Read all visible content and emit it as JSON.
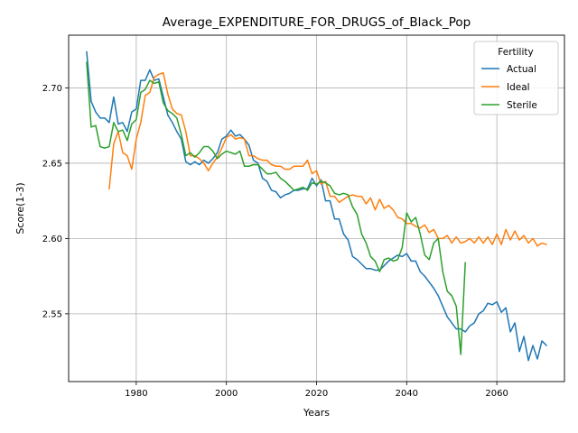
{
  "chart_data": {
    "type": "line",
    "title": "Average_EXPENDITURE_FOR_DRUGS_of_Black_Pop",
    "xlabel": "Years",
    "ylabel": "Score(1-3)",
    "xlim": [
      1965,
      2075
    ],
    "ylim": [
      2.505,
      2.735
    ],
    "xticks": [
      1980,
      2000,
      2020,
      2040,
      2060
    ],
    "yticks": [
      2.55,
      2.6,
      2.65,
      2.7
    ],
    "xtick_labels": [
      "1980",
      "2000",
      "2020",
      "2040",
      "2060"
    ],
    "ytick_labels": [
      "2.55",
      "2.60",
      "2.65",
      "2.70"
    ],
    "grid": true,
    "legend": {
      "title": "Fertility",
      "placement": "top-right"
    },
    "series": [
      {
        "name": "Actual",
        "color": "#1f77b4",
        "points": [
          [
            1969,
            2.724
          ],
          [
            1970,
            2.691
          ],
          [
            1971,
            2.684
          ],
          [
            1972,
            2.68
          ],
          [
            1973,
            2.68
          ],
          [
            1974,
            2.677
          ],
          [
            1975,
            2.694
          ],
          [
            1976,
            2.676
          ],
          [
            1977,
            2.677
          ],
          [
            1978,
            2.671
          ],
          [
            1979,
            2.684
          ],
          [
            1980,
            2.686
          ],
          [
            1981,
            2.705
          ],
          [
            1982,
            2.705
          ],
          [
            1983,
            2.712
          ],
          [
            1984,
            2.705
          ],
          [
            1985,
            2.706
          ],
          [
            1986,
            2.694
          ],
          [
            1987,
            2.682
          ],
          [
            1988,
            2.677
          ],
          [
            1989,
            2.671
          ],
          [
            1990,
            2.666
          ],
          [
            1991,
            2.651
          ],
          [
            1992,
            2.649
          ],
          [
            1993,
            2.651
          ],
          [
            1994,
            2.649
          ],
          [
            1995,
            2.652
          ],
          [
            1996,
            2.65
          ],
          [
            1997,
            2.653
          ],
          [
            1998,
            2.657
          ],
          [
            1999,
            2.666
          ],
          [
            2000,
            2.668
          ],
          [
            2001,
            2.672
          ],
          [
            2002,
            2.668
          ],
          [
            2003,
            2.669
          ],
          [
            2004,
            2.666
          ],
          [
            2005,
            2.662
          ],
          [
            2006,
            2.652
          ],
          [
            2007,
            2.65
          ],
          [
            2008,
            2.64
          ],
          [
            2009,
            2.638
          ],
          [
            2010,
            2.632
          ],
          [
            2011,
            2.631
          ],
          [
            2012,
            2.627
          ],
          [
            2013,
            2.629
          ],
          [
            2014,
            2.63
          ],
          [
            2015,
            2.632
          ],
          [
            2016,
            2.632
          ],
          [
            2017,
            2.633
          ],
          [
            2018,
            2.633
          ],
          [
            2019,
            2.64
          ],
          [
            2020,
            2.635
          ],
          [
            2021,
            2.639
          ],
          [
            2022,
            2.625
          ],
          [
            2023,
            2.625
          ],
          [
            2024,
            2.613
          ],
          [
            2025,
            2.613
          ],
          [
            2026,
            2.603
          ],
          [
            2027,
            2.599
          ],
          [
            2028,
            2.588
          ],
          [
            2029,
            2.586
          ],
          [
            2030,
            2.583
          ],
          [
            2031,
            2.58
          ],
          [
            2032,
            2.58
          ],
          [
            2033,
            2.579
          ],
          [
            2034,
            2.579
          ],
          [
            2035,
            2.582
          ],
          [
            2036,
            2.585
          ],
          [
            2037,
            2.587
          ],
          [
            2038,
            2.589
          ],
          [
            2039,
            2.588
          ],
          [
            2040,
            2.59
          ],
          [
            2041,
            2.585
          ],
          [
            2042,
            2.585
          ],
          [
            2043,
            2.578
          ],
          [
            2044,
            2.575
          ],
          [
            2045,
            2.571
          ],
          [
            2046,
            2.567
          ],
          [
            2047,
            2.562
          ],
          [
            2048,
            2.555
          ],
          [
            2049,
            2.548
          ],
          [
            2050,
            2.544
          ],
          [
            2051,
            2.54
          ],
          [
            2052,
            2.54
          ],
          [
            2053,
            2.538
          ],
          [
            2054,
            2.542
          ],
          [
            2055,
            2.544
          ],
          [
            2056,
            2.55
          ],
          [
            2057,
            2.552
          ],
          [
            2058,
            2.557
          ],
          [
            2059,
            2.556
          ],
          [
            2060,
            2.558
          ],
          [
            2061,
            2.551
          ],
          [
            2062,
            2.554
          ],
          [
            2063,
            2.538
          ],
          [
            2064,
            2.544
          ],
          [
            2065,
            2.525
          ],
          [
            2066,
            2.535
          ],
          [
            2067,
            2.519
          ],
          [
            2068,
            2.529
          ],
          [
            2069,
            2.52
          ],
          [
            2070,
            2.532
          ],
          [
            2071,
            2.529
          ]
        ]
      },
      {
        "name": "Ideal",
        "color": "#ff7f0e",
        "points": [
          [
            1974,
            2.633
          ],
          [
            1975,
            2.663
          ],
          [
            1976,
            2.671
          ],
          [
            1977,
            2.657
          ],
          [
            1978,
            2.655
          ],
          [
            1979,
            2.646
          ],
          [
            1980,
            2.666
          ],
          [
            1981,
            2.677
          ],
          [
            1982,
            2.695
          ],
          [
            1983,
            2.697
          ],
          [
            1984,
            2.707
          ],
          [
            1985,
            2.709
          ],
          [
            1986,
            2.71
          ],
          [
            1987,
            2.696
          ],
          [
            1988,
            2.686
          ],
          [
            1989,
            2.683
          ],
          [
            1990,
            2.682
          ],
          [
            1991,
            2.671
          ],
          [
            1992,
            2.655
          ],
          [
            1993,
            2.655
          ],
          [
            1994,
            2.653
          ],
          [
            1995,
            2.65
          ],
          [
            1996,
            2.645
          ],
          [
            1997,
            2.65
          ],
          [
            1998,
            2.654
          ],
          [
            1999,
            2.66
          ],
          [
            2000,
            2.667
          ],
          [
            2001,
            2.669
          ],
          [
            2002,
            2.666
          ],
          [
            2003,
            2.667
          ],
          [
            2004,
            2.666
          ],
          [
            2005,
            2.655
          ],
          [
            2006,
            2.655
          ],
          [
            2007,
            2.653
          ],
          [
            2008,
            2.652
          ],
          [
            2009,
            2.652
          ],
          [
            2010,
            2.649
          ],
          [
            2011,
            2.648
          ],
          [
            2012,
            2.648
          ],
          [
            2013,
            2.646
          ],
          [
            2014,
            2.646
          ],
          [
            2015,
            2.648
          ],
          [
            2016,
            2.648
          ],
          [
            2017,
            2.648
          ],
          [
            2018,
            2.652
          ],
          [
            2019,
            2.643
          ],
          [
            2020,
            2.645
          ],
          [
            2021,
            2.636
          ],
          [
            2022,
            2.638
          ],
          [
            2023,
            2.628
          ],
          [
            2024,
            2.628
          ],
          [
            2025,
            2.624
          ],
          [
            2026,
            2.626
          ],
          [
            2027,
            2.628
          ],
          [
            2028,
            2.629
          ],
          [
            2029,
            2.628
          ],
          [
            2030,
            2.628
          ],
          [
            2031,
            2.623
          ],
          [
            2032,
            2.627
          ],
          [
            2033,
            2.619
          ],
          [
            2034,
            2.626
          ],
          [
            2035,
            2.62
          ],
          [
            2036,
            2.622
          ],
          [
            2037,
            2.619
          ],
          [
            2038,
            2.614
          ],
          [
            2039,
            2.613
          ],
          [
            2040,
            2.61
          ],
          [
            2041,
            2.61
          ],
          [
            2042,
            2.608
          ],
          [
            2043,
            2.607
          ],
          [
            2044,
            2.609
          ],
          [
            2045,
            2.604
          ],
          [
            2046,
            2.606
          ],
          [
            2047,
            2.6
          ],
          [
            2048,
            2.6
          ],
          [
            2049,
            2.602
          ],
          [
            2050,
            2.597
          ],
          [
            2051,
            2.601
          ],
          [
            2052,
            2.597
          ],
          [
            2053,
            2.598
          ],
          [
            2054,
            2.6
          ],
          [
            2055,
            2.597
          ],
          [
            2056,
            2.601
          ],
          [
            2057,
            2.597
          ],
          [
            2058,
            2.601
          ],
          [
            2059,
            2.596
          ],
          [
            2060,
            2.603
          ],
          [
            2061,
            2.596
          ],
          [
            2062,
            2.606
          ],
          [
            2063,
            2.599
          ],
          [
            2064,
            2.605
          ],
          [
            2065,
            2.599
          ],
          [
            2066,
            2.602
          ],
          [
            2067,
            2.597
          ],
          [
            2068,
            2.6
          ],
          [
            2069,
            2.595
          ],
          [
            2070,
            2.597
          ],
          [
            2071,
            2.596
          ]
        ]
      },
      {
        "name": "Sterile",
        "color": "#2ca02c",
        "points": [
          [
            1969,
            2.717
          ],
          [
            1970,
            2.674
          ],
          [
            1971,
            2.675
          ],
          [
            1972,
            2.661
          ],
          [
            1973,
            2.66
          ],
          [
            1974,
            2.661
          ],
          [
            1975,
            2.677
          ],
          [
            1976,
            2.671
          ],
          [
            1977,
            2.672
          ],
          [
            1978,
            2.665
          ],
          [
            1979,
            2.676
          ],
          [
            1980,
            2.679
          ],
          [
            1981,
            2.697
          ],
          [
            1982,
            2.699
          ],
          [
            1983,
            2.705
          ],
          [
            1984,
            2.703
          ],
          [
            1985,
            2.704
          ],
          [
            1986,
            2.69
          ],
          [
            1987,
            2.685
          ],
          [
            1988,
            2.683
          ],
          [
            1989,
            2.68
          ],
          [
            1990,
            2.669
          ],
          [
            1991,
            2.655
          ],
          [
            1992,
            2.657
          ],
          [
            1993,
            2.654
          ],
          [
            1994,
            2.657
          ],
          [
            1995,
            2.661
          ],
          [
            1996,
            2.661
          ],
          [
            1997,
            2.658
          ],
          [
            1998,
            2.653
          ],
          [
            1999,
            2.656
          ],
          [
            2000,
            2.658
          ],
          [
            2001,
            2.657
          ],
          [
            2002,
            2.656
          ],
          [
            2003,
            2.658
          ],
          [
            2004,
            2.648
          ],
          [
            2005,
            2.648
          ],
          [
            2006,
            2.649
          ],
          [
            2007,
            2.649
          ],
          [
            2008,
            2.646
          ],
          [
            2009,
            2.643
          ],
          [
            2010,
            2.643
          ],
          [
            2011,
            2.644
          ],
          [
            2012,
            2.64
          ],
          [
            2013,
            2.638
          ],
          [
            2014,
            2.635
          ],
          [
            2015,
            2.632
          ],
          [
            2016,
            2.633
          ],
          [
            2017,
            2.634
          ],
          [
            2018,
            2.632
          ],
          [
            2019,
            2.637
          ],
          [
            2020,
            2.636
          ],
          [
            2021,
            2.638
          ],
          [
            2022,
            2.637
          ],
          [
            2023,
            2.635
          ],
          [
            2024,
            2.63
          ],
          [
            2025,
            2.629
          ],
          [
            2026,
            2.63
          ],
          [
            2027,
            2.629
          ],
          [
            2028,
            2.621
          ],
          [
            2029,
            2.616
          ],
          [
            2030,
            2.603
          ],
          [
            2031,
            2.597
          ],
          [
            2032,
            2.588
          ],
          [
            2033,
            2.585
          ],
          [
            2034,
            2.578
          ],
          [
            2035,
            2.586
          ],
          [
            2036,
            2.587
          ],
          [
            2037,
            2.585
          ],
          [
            2038,
            2.586
          ],
          [
            2039,
            2.594
          ],
          [
            2040,
            2.617
          ],
          [
            2041,
            2.611
          ],
          [
            2042,
            2.614
          ],
          [
            2043,
            2.603
          ],
          [
            2044,
            2.589
          ],
          [
            2045,
            2.586
          ],
          [
            2046,
            2.597
          ],
          [
            2047,
            2.6
          ],
          [
            2048,
            2.578
          ],
          [
            2049,
            2.565
          ],
          [
            2050,
            2.562
          ],
          [
            2051,
            2.555
          ],
          [
            2052,
            2.523
          ],
          [
            2053,
            2.584
          ]
        ]
      }
    ]
  }
}
